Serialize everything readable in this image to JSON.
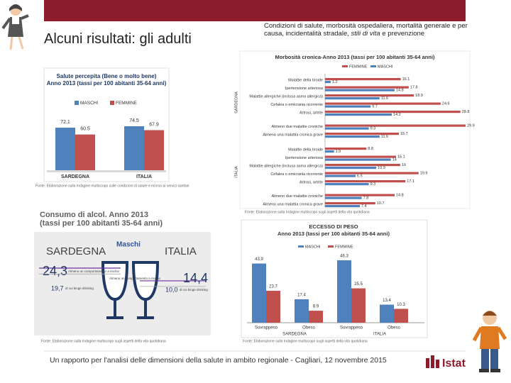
{
  "slide": {
    "title": "Alcuni risultati: gli adulti",
    "subtitle": [
      "Condizioni di salute, morbosità ospedaliera, mortalità generale e per causa, incidentalità stradale, ",
      "stili di vita",
      " e prevenzione"
    ],
    "footer": "Un rapporto per l'analisi delle dimensioni della salute in ambito regionale - Cagliari, 12 novembre 2015",
    "logo": "Istat"
  },
  "chart_data": [
    {
      "type": "bar",
      "title": [
        "Salute percepita (Bene o molto bene)",
        "Anno 2013 (tassi per 100 abitanti 35-64 anni)"
      ],
      "categories": [
        "SARDEGNA",
        "ITALIA"
      ],
      "series": [
        {
          "name": "MASCHI",
          "color": "#4f81bd",
          "values": [
            72.1,
            74.5
          ]
        },
        {
          "name": "FEMMINE",
          "color": "#c0504d",
          "values": [
            60.5,
            67.9
          ]
        }
      ],
      "source": "Fonte: Elaborazione sulla Indagine multiscopo sulle condizioni di salute e ricorso ai servizi sanitari"
    },
    {
      "type": "hbar",
      "title": "Morbosità cronica-Anno 2013 (tassi per 100 abitanti 35-64 anni)",
      "groups": [
        "SARDEGNA",
        "ITALIA"
      ],
      "categories": [
        "Malattie della tiroide",
        "Ipertensione arteriosa",
        "Malattie allergiche (inclusa asma allergica)",
        "Cefalea o emicrania ricorrente",
        "Artrosi, artrite",
        "Almeno due malattie croniche",
        "Almeno una malattia cronica grave",
        "Malattie della tiroide",
        "Ipertensione arteriosa",
        "Malattie allergiche (inclusa asma allergica)",
        "Cefalea o emicrania ricorrente",
        "Artrosi, artrite",
        "Almeno due malattie croniche",
        "Almeno una malattia cronica grave"
      ],
      "series": [
        {
          "name": "FEMMINE",
          "color": "#c0504d",
          "values": [
            16.1,
            17.8,
            18.9,
            24.6,
            28.8,
            29.9,
            15.7,
            8.8,
            15.1,
            16.0,
            19.9,
            17.1,
            14.8,
            10.7
          ]
        },
        {
          "name": "MASCHI",
          "color": "#4f81bd",
          "values": [
            1.2,
            14.8,
            11.6,
            9.7,
            14.2,
            9.3,
            11.6,
            1.9,
            14.0,
            10.9,
            6.5,
            9.3,
            7.8,
            7.4
          ]
        }
      ],
      "source": "Fonte: Elaborazione sulla Indagine multiscopo sugli aspetti della vita quotidiana"
    },
    {
      "type": "infographic",
      "title": [
        "Consumo di alcol. Anno 2013",
        "(tassi per 100 abitanti 35-64 anni)"
      ],
      "series_label": "Maschi",
      "measures": [
        "Almeno un comportamento a rischio",
        "di cui binge drinking"
      ],
      "regions": [
        {
          "name": "SARDEGNA",
          "values": [
            24.3,
            19.7
          ],
          "value_labels": [
            "24,3",
            "19,7"
          ]
        },
        {
          "name": "ITALIA",
          "values": [
            14.4,
            10.0
          ],
          "value_labels": [
            "14,4",
            "10,0"
          ]
        }
      ],
      "source": "Fonte: Elaborazione sulla Indagine multiscopo sugli aspetti della vita quotidiana"
    },
    {
      "type": "bar",
      "title": [
        "ECCESSO DI PESO",
        "Anno 2013 (tassi per 100 abitanti 35-64 anni)"
      ],
      "groups": [
        "SARDEGNA",
        "ITALIA"
      ],
      "categories": [
        "Sovrappeso",
        "Obeso",
        "Sovrappeso",
        "Obeso"
      ],
      "series": [
        {
          "name": "MASCHI",
          "color": "#4f81bd",
          "values": [
            43.9,
            17.4,
            46.3,
            13.4
          ]
        },
        {
          "name": "FEMMINE",
          "color": "#c0504d",
          "values": [
            23.7,
            8.9,
            25.5,
            10.3
          ]
        }
      ],
      "source": "Fonte: Elaborazione sulla Indagine multiscopo sugli aspetti della vita quotidiana"
    }
  ]
}
